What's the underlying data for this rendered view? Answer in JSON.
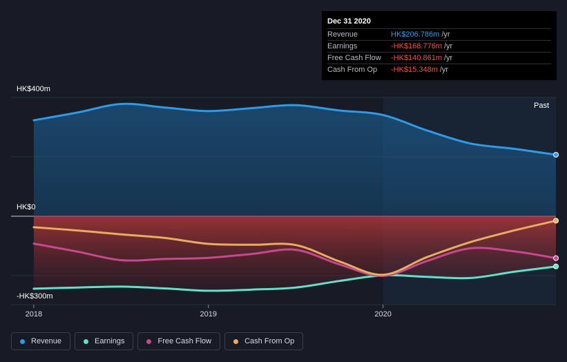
{
  "tooltip": {
    "date": "Dec 31 2020",
    "rows": [
      {
        "name": "Revenue",
        "value": "HK$206.786m",
        "unit": "/yr",
        "color": "#2f9ae6"
      },
      {
        "name": "Earnings",
        "value": "-HK$168.776m",
        "unit": "/yr",
        "color": "#ff4a4a"
      },
      {
        "name": "Free Cash Flow",
        "value": "-HK$140.861m",
        "unit": "/yr",
        "color": "#ff4a4a"
      },
      {
        "name": "Cash From Op",
        "value": "-HK$15.348m",
        "unit": "/yr",
        "color": "#ff4a4a"
      }
    ]
  },
  "past_label": "Past",
  "legend": [
    {
      "name": "Revenue",
      "color": "#2f9ae6"
    },
    {
      "name": "Earnings",
      "color": "#5fe2c9"
    },
    {
      "name": "Free Cash Flow",
      "color": "#c8488f"
    },
    {
      "name": "Cash From Op",
      "color": "#e8ad5f"
    }
  ],
  "chart_data": {
    "type": "line",
    "y_tick_labels": [
      "HK$400m",
      "HK$0",
      "-HK$300m"
    ],
    "ylim": [
      -300,
      400
    ],
    "x_ticks": [
      {
        "label": "2018",
        "x": 2018.0
      },
      {
        "label": "2019",
        "x": 2019.0
      },
      {
        "label": "2020",
        "x": 2020.0
      }
    ],
    "xlim": [
      2017.87,
      2020.99
    ],
    "grid": true,
    "series": [
      {
        "name": "Revenue",
        "color": "#2f9ae6",
        "x": [
          2018.0,
          2018.25,
          2018.5,
          2018.75,
          2019.0,
          2019.25,
          2019.5,
          2019.75,
          2020.0,
          2020.25,
          2020.5,
          2020.75,
          2020.99
        ],
        "values": [
          323,
          349,
          378,
          366,
          354,
          364,
          374,
          356,
          341,
          289,
          245,
          227,
          207
        ]
      },
      {
        "name": "Earnings",
        "color": "#5fe2c9",
        "x": [
          2018.0,
          2018.25,
          2018.5,
          2018.75,
          2019.0,
          2019.25,
          2019.5,
          2019.75,
          2020.0,
          2020.25,
          2020.5,
          2020.75,
          2020.99
        ],
        "values": [
          -244,
          -240,
          -237,
          -243,
          -251,
          -247,
          -240,
          -218,
          -199,
          -204,
          -208,
          -187,
          -169
        ]
      },
      {
        "name": "Free Cash Flow",
        "color": "#c8488f",
        "x": [
          2018.0,
          2018.25,
          2018.5,
          2018.75,
          2019.0,
          2019.25,
          2019.5,
          2019.75,
          2020.0,
          2020.25,
          2020.5,
          2020.75,
          2020.99
        ],
        "values": [
          -92,
          -119,
          -148,
          -144,
          -140,
          -127,
          -113,
          -162,
          -201,
          -151,
          -108,
          -118,
          -141
        ]
      },
      {
        "name": "Cash From Op",
        "color": "#e8ad5f",
        "x": [
          2018.0,
          2018.25,
          2018.5,
          2018.75,
          2019.0,
          2019.25,
          2019.5,
          2019.75,
          2020.0,
          2020.25,
          2020.5,
          2020.75,
          2020.99
        ],
        "values": [
          -37,
          -48,
          -61,
          -73,
          -93,
          -96,
          -97,
          -152,
          -197,
          -138,
          -87,
          -48,
          -15
        ]
      }
    ],
    "highlight_from_x": 2020.0
  }
}
